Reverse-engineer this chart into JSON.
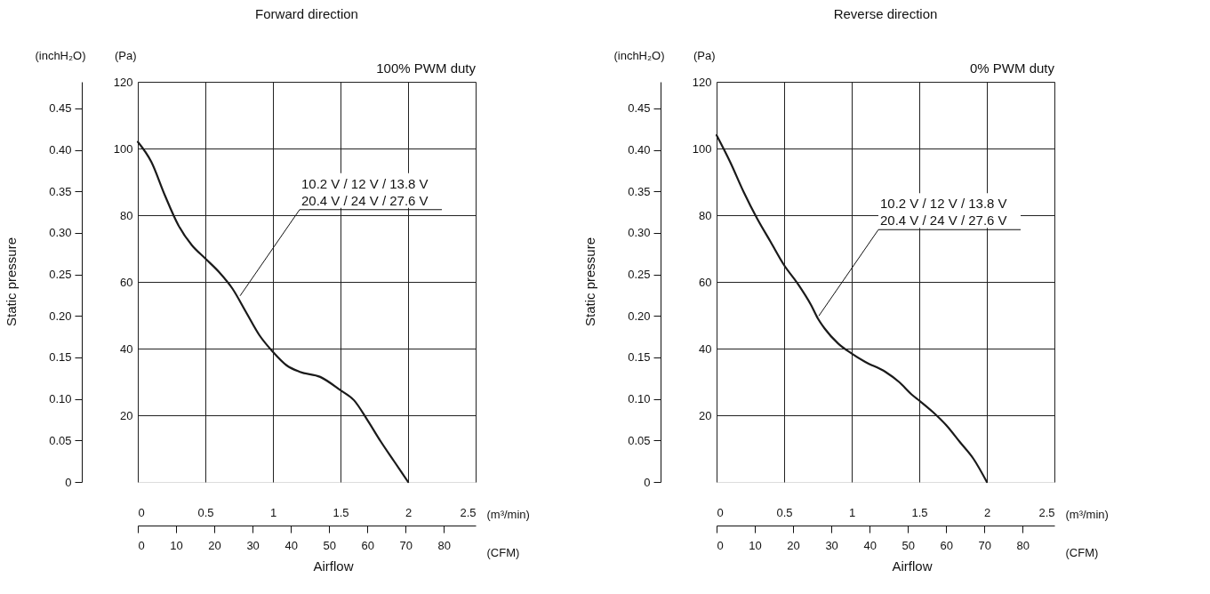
{
  "chart_data": [
    {
      "type": "line",
      "title": "Forward direction",
      "xlabel": "(m³/min)",
      "ylabel": "(Pa)",
      "y2label": "(inchH₂O)",
      "x2label": "(CFM)",
      "x": [
        0,
        0.1,
        0.2,
        0.3,
        0.4,
        0.5,
        0.6,
        0.7,
        0.8,
        0.9,
        1.0,
        1.1,
        1.2,
        1.35,
        1.5,
        1.6,
        1.7,
        1.8,
        1.9,
        2.0
      ],
      "series": [
        {
          "color": "#1a1a1a",
          "values": [
            102,
            96,
            86,
            77,
            71,
            67,
            63,
            58,
            51,
            44,
            39,
            35,
            33,
            31.5,
            27.5,
            24.5,
            18.5,
            12,
            6,
            0
          ]
        }
      ],
      "xlim": [
        0,
        2.5
      ],
      "xticks": [
        0,
        0.5,
        1,
        1.5,
        2,
        2.5
      ],
      "ylim": [
        0,
        120
      ],
      "yticks": [
        20,
        40,
        60,
        80,
        100,
        120
      ],
      "y2lim": [
        0,
        0.482
      ],
      "y2ticks": [
        0,
        0.05,
        {
          "value": 0.1,
          "label": "0.10"
        },
        0.15,
        {
          "value": 0.2,
          "label": "0.20"
        },
        0.25,
        {
          "value": 0.3,
          "label": "0.30"
        },
        0.35,
        {
          "value": 0.4,
          "label": "0.40"
        },
        0.45
      ],
      "x2lim": [
        0,
        88.29
      ],
      "x2ticks": [
        0,
        10,
        20,
        30,
        40,
        50,
        60,
        70,
        80
      ],
      "grid": true,
      "marker": "none",
      "line_style": "solid",
      "annotations": [
        {
          "text": "10.2 V / 12 V / 13.8 V\n20.4 V / 24 V / 27.6 V",
          "x": 0.75,
          "y": 55
        },
        "100% PWM duty",
        "Static pressure",
        "Airflow"
      ]
    },
    {
      "type": "line",
      "title": "Reverse direction",
      "xlabel": "(m³/min)",
      "ylabel": "(Pa)",
      "y2label": "(inchH₂O)",
      "x2label": "(CFM)",
      "x": [
        0,
        0.1,
        0.2,
        0.3,
        0.4,
        0.5,
        0.6,
        0.7,
        0.75,
        0.8,
        0.9,
        1.0,
        1.1,
        1.25,
        1.35,
        1.45,
        1.5,
        1.6,
        1.7,
        1.8,
        1.9,
        2.0
      ],
      "series": [
        {
          "color": "#1a1a1a",
          "values": [
            104,
            96,
            87,
            79,
            72,
            65,
            59.5,
            53,
            49,
            46,
            41.5,
            38.5,
            36,
            33,
            30,
            26,
            24.4,
            21,
            17,
            12,
            7,
            0
          ]
        }
      ],
      "xlim": [
        0,
        2.5
      ],
      "xticks": [
        0,
        0.5,
        1,
        1.5,
        2,
        2.5
      ],
      "ylim": [
        0,
        120
      ],
      "yticks": [
        20,
        40,
        60,
        80,
        100,
        120
      ],
      "y2lim": [
        0,
        0.482
      ],
      "y2ticks": [
        0,
        0.05,
        {
          "value": 0.1,
          "label": "0.10"
        },
        0.15,
        {
          "value": 0.2,
          "label": "0.20"
        },
        0.25,
        {
          "value": 0.3,
          "label": "0.30"
        },
        0.35,
        {
          "value": 0.4,
          "label": "0.40"
        },
        0.45
      ],
      "x2lim": [
        0,
        88.29
      ],
      "x2ticks": [
        0,
        10,
        20,
        30,
        40,
        50,
        60,
        70,
        80
      ],
      "grid": true,
      "marker": "none",
      "line_style": "solid",
      "annotations": [
        {
          "text": "10.2 V / 12 V / 13.8 V\n20.4 V / 24 V / 27.6 V",
          "x": 0.75,
          "y": 49
        },
        "0% PWM duty",
        "Static pressure",
        "Airflow"
      ]
    }
  ]
}
